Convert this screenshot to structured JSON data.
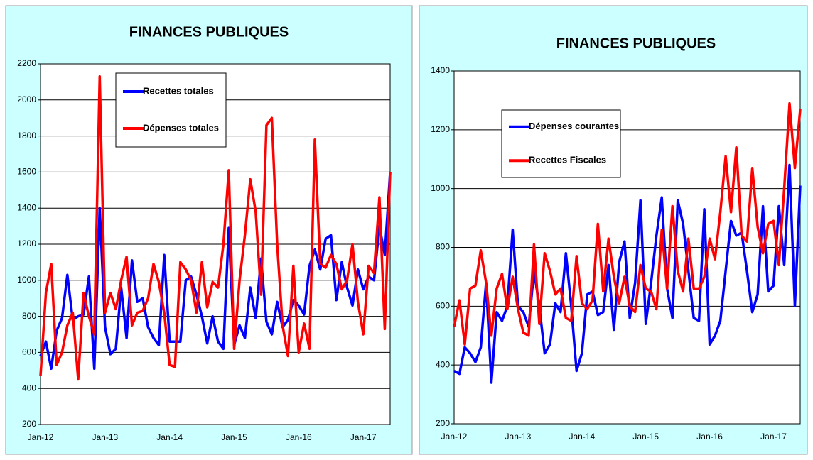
{
  "chart_data": [
    {
      "type": "line",
      "title": "FINANCES PUBLIQUES",
      "categories": [
        "Jan-12",
        null,
        null,
        null,
        null,
        null,
        null,
        null,
        null,
        null,
        null,
        null,
        "Jan-13",
        null,
        null,
        null,
        null,
        null,
        null,
        null,
        null,
        null,
        null,
        null,
        "Jan-14",
        null,
        null,
        null,
        null,
        null,
        null,
        null,
        null,
        null,
        null,
        null,
        "Jan-15",
        null,
        null,
        null,
        null,
        null,
        null,
        null,
        null,
        null,
        null,
        null,
        "Jan-16",
        null,
        null,
        null,
        null,
        null,
        null,
        null,
        null,
        null,
        null,
        null,
        "Jan-17",
        null,
        null,
        null,
        null,
        null
      ],
      "series": [
        {
          "name": "Recettes totales",
          "color": "#0000ff",
          "values": [
            580,
            660,
            510,
            720,
            790,
            1030,
            780,
            800,
            810,
            1020,
            510,
            1400,
            740,
            590,
            620,
            960,
            680,
            1110,
            880,
            900,
            740,
            680,
            640,
            1140,
            660,
            660,
            660,
            1000,
            1020,
            920,
            800,
            650,
            800,
            660,
            620,
            1290,
            640,
            750,
            680,
            960,
            790,
            1120,
            770,
            700,
            880,
            740,
            780,
            890,
            860,
            810,
            1080,
            1170,
            1060,
            1230,
            1250,
            890,
            1100,
            960,
            860,
            1060,
            950,
            1020,
            1000,
            1300,
            1140,
            1600
          ]
        },
        {
          "name": "Dépenses totales",
          "color": "#ff0000",
          "values": [
            470,
            930,
            1090,
            530,
            600,
            750,
            820,
            450,
            930,
            800,
            700,
            2130,
            820,
            930,
            840,
            1000,
            1130,
            750,
            820,
            830,
            900,
            1090,
            990,
            820,
            530,
            520,
            1100,
            1060,
            1000,
            820,
            1100,
            850,
            990,
            960,
            1200,
            1610,
            620,
            1000,
            1250,
            1560,
            1380,
            920,
            1860,
            1900,
            1200,
            750,
            580,
            1080,
            600,
            760,
            620,
            1780,
            1090,
            1070,
            1140,
            1090,
            950,
            1000,
            1200,
            880,
            700,
            1080,
            1040,
            1460,
            730,
            1600
          ]
        }
      ],
      "ylim": [
        200,
        2200
      ],
      "yticks": [
        200,
        400,
        600,
        800,
        1000,
        1200,
        1400,
        1600,
        1800,
        2000,
        2200
      ],
      "grid": true,
      "legend": "upper left"
    },
    {
      "type": "line",
      "title": "FINANCES PUBLIQUES",
      "categories": [
        "Jan-12",
        null,
        null,
        null,
        null,
        null,
        null,
        null,
        null,
        null,
        null,
        null,
        "Jan-13",
        null,
        null,
        null,
        null,
        null,
        null,
        null,
        null,
        null,
        null,
        null,
        "Jan-14",
        null,
        null,
        null,
        null,
        null,
        null,
        null,
        null,
        null,
        null,
        null,
        "Jan-15",
        null,
        null,
        null,
        null,
        null,
        null,
        null,
        null,
        null,
        null,
        null,
        "Jan-16",
        null,
        null,
        null,
        null,
        null,
        null,
        null,
        null,
        null,
        null,
        null,
        "Jan-17",
        null,
        null,
        null,
        null,
        null
      ],
      "series": [
        {
          "name": "Dépenses courantes",
          "color": "#0000ff",
          "values": [
            380,
            370,
            460,
            440,
            410,
            460,
            680,
            340,
            580,
            550,
            600,
            860,
            600,
            580,
            530,
            720,
            600,
            440,
            470,
            610,
            580,
            780,
            600,
            380,
            440,
            640,
            650,
            570,
            580,
            740,
            520,
            750,
            820,
            560,
            680,
            960,
            540,
            680,
            840,
            970,
            660,
            560,
            960,
            880,
            720,
            560,
            550,
            930,
            470,
            500,
            550,
            720,
            890,
            840,
            850,
            720,
            580,
            640,
            940,
            650,
            670,
            940,
            740,
            1080,
            600,
            1010
          ]
        },
        {
          "name": "Recettes Fiscales",
          "color": "#ff0000",
          "values": [
            530,
            620,
            470,
            660,
            670,
            790,
            680,
            500,
            660,
            710,
            590,
            700,
            590,
            510,
            500,
            810,
            540,
            780,
            720,
            640,
            660,
            560,
            550,
            770,
            610,
            590,
            620,
            880,
            650,
            830,
            700,
            610,
            700,
            600,
            580,
            740,
            660,
            650,
            590,
            860,
            660,
            940,
            720,
            650,
            830,
            660,
            660,
            700,
            830,
            760,
            920,
            1110,
            920,
            1140,
            840,
            820,
            1070,
            870,
            780,
            880,
            890,
            740,
            1000,
            1290,
            1070,
            1270
          ]
        }
      ],
      "ylim": [
        200,
        1400
      ],
      "yticks": [
        200,
        400,
        600,
        800,
        1000,
        1200,
        1400
      ],
      "grid": true,
      "legend": "upper left"
    }
  ]
}
